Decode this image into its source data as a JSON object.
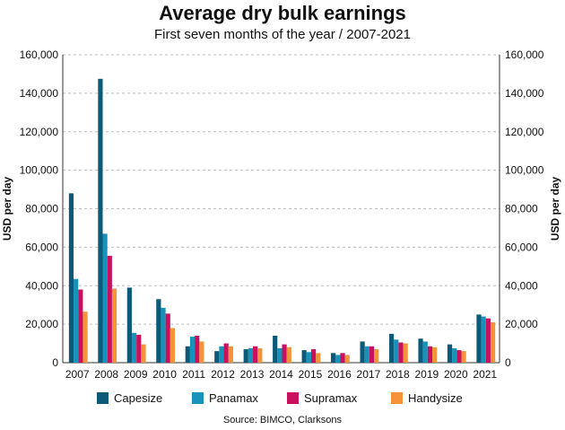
{
  "chart_data": {
    "type": "bar",
    "title": "Average dry bulk earnings",
    "subtitle": "First seven months of the year / 2007-2021",
    "source": "Source: BIMCO, Clarksons",
    "ylabel": "USD per day",
    "ylabel_right": "USD per day",
    "ylim": [
      0,
      160000
    ],
    "yticks": [
      0,
      20000,
      40000,
      60000,
      80000,
      100000,
      120000,
      140000,
      160000
    ],
    "ytick_labels": [
      "0",
      "20,000",
      "40,000",
      "60,000",
      "80,000",
      "100,000",
      "120,000",
      "140,000",
      "160,000"
    ],
    "grid": true,
    "legend_position": "bottom",
    "categories": [
      "2007",
      "2008",
      "2009",
      "2010",
      "2011",
      "2012",
      "2013",
      "2014",
      "2015",
      "2016",
      "2017",
      "2018",
      "2019",
      "2020",
      "2021"
    ],
    "series": [
      {
        "name": "Capesize",
        "color": "#0d5a78",
        "values": [
          88000,
          147500,
          39000,
          33000,
          8500,
          6000,
          7000,
          14000,
          6500,
          5000,
          11000,
          15000,
          12500,
          9500,
          25000
        ]
      },
      {
        "name": "Panamax",
        "color": "#1892b8",
        "values": [
          43500,
          67000,
          15500,
          28500,
          13500,
          8500,
          7500,
          7500,
          5500,
          4000,
          8500,
          12000,
          11000,
          7500,
          24000
        ]
      },
      {
        "name": "Supramax",
        "color": "#c8105e",
        "values": [
          38000,
          55500,
          14500,
          25500,
          14000,
          10000,
          8500,
          9500,
          7000,
          5000,
          8500,
          10500,
          8500,
          6500,
          23000
        ]
      },
      {
        "name": "Handysize",
        "color": "#f5923a",
        "values": [
          26500,
          38500,
          9500,
          18000,
          11000,
          8500,
          7500,
          8000,
          5000,
          4000,
          7000,
          10000,
          8000,
          6000,
          21000
        ]
      }
    ]
  }
}
